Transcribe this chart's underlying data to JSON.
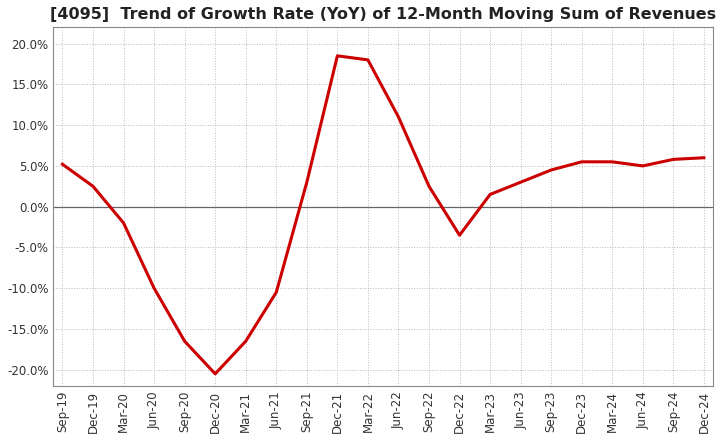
{
  "title": "[4095]  Trend of Growth Rate (YoY) of 12-Month Moving Sum of Revenues",
  "x_labels": [
    "Sep-19",
    "Dec-19",
    "Mar-20",
    "Jun-20",
    "Sep-20",
    "Dec-20",
    "Mar-21",
    "Jun-21",
    "Sep-21",
    "Dec-21",
    "Mar-22",
    "Jun-22",
    "Sep-22",
    "Dec-22",
    "Mar-23",
    "Jun-23",
    "Sep-23",
    "Dec-23",
    "Mar-24",
    "Jun-24",
    "Sep-24",
    "Dec-24"
  ],
  "y_values": [
    5.2,
    2.5,
    -2.0,
    -10.0,
    -16.5,
    -20.5,
    -16.5,
    -10.5,
    3.0,
    18.5,
    18.0,
    11.0,
    2.5,
    -3.5,
    1.5,
    3.0,
    4.5,
    5.5,
    5.5,
    5.0,
    5.8,
    6.0
  ],
  "line_color": "#cc0000",
  "line_width": 2.2,
  "ylim": [
    -22,
    22
  ],
  "yticks": [
    -20.0,
    -15.0,
    -10.0,
    -5.0,
    0.0,
    5.0,
    10.0,
    15.0,
    20.0
  ],
  "background_color": "#ffffff",
  "grid_color": "#bbbbbb",
  "title_fontsize": 11.5,
  "tick_fontsize": 8.5,
  "zero_line_color": "#666666",
  "spine_color": "#888888"
}
